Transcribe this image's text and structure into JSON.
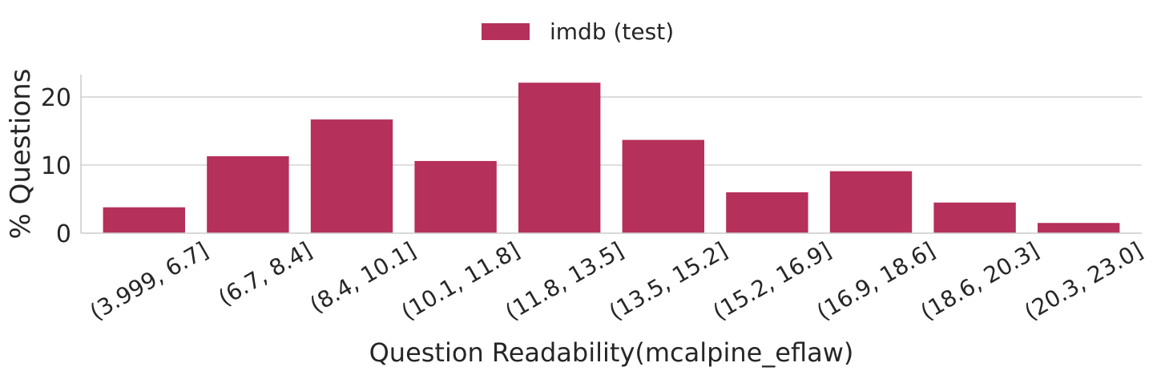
{
  "chart_data": {
    "type": "bar",
    "title": "",
    "xlabel": "Question Readability(mcalpine_eflaw)",
    "ylabel": "% Questions",
    "categories": [
      "(3.999, 6.7]",
      "(6.7, 8.4]",
      "(8.4, 10.1]",
      "(10.1, 11.8]",
      "(11.8, 13.5]",
      "(13.5, 15.2]",
      "(15.2, 16.9]",
      "(16.9, 18.6]",
      "(18.6, 20.3]",
      "(20.3, 23.0]"
    ],
    "series": [
      {
        "name": "imdb (test)",
        "color": "#b5305a",
        "values": [
          3.8,
          11.3,
          16.7,
          10.6,
          22.1,
          13.7,
          6.0,
          9.1,
          4.5,
          1.5
        ]
      }
    ],
    "yticks": [
      0,
      10,
      20
    ],
    "ylim": [
      0,
      23.3
    ],
    "grid": "horizontal",
    "legend_position": "top-center"
  }
}
